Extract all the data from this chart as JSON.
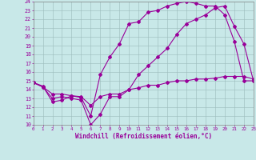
{
  "xlabel": "Windchill (Refroidissement éolien,°C)",
  "bg_color": "#c8e8e8",
  "line_color": "#990099",
  "xmin": 0,
  "xmax": 23,
  "ymin": 10,
  "ymax": 24,
  "line1_x": [
    0,
    1,
    2,
    3,
    4,
    5,
    6,
    7,
    8,
    9,
    10,
    11,
    12,
    13,
    14,
    15,
    16,
    17,
    18,
    19,
    20,
    21,
    22,
    23
  ],
  "line1_y": [
    14.8,
    14.4,
    12.6,
    12.8,
    13.3,
    13.1,
    11.0,
    15.7,
    17.7,
    19.2,
    21.5,
    21.7,
    22.8,
    23.0,
    23.5,
    23.8,
    24.0,
    23.8,
    23.5,
    23.5,
    22.5,
    19.5,
    15.0,
    15.0
  ],
  "line2_x": [
    0,
    1,
    2,
    3,
    4,
    5,
    6,
    7,
    8,
    9,
    10,
    11,
    12,
    13,
    14,
    15,
    16,
    17,
    18,
    19,
    20,
    21,
    22,
    23
  ],
  "line2_y": [
    14.8,
    14.3,
    13.0,
    13.2,
    13.0,
    12.8,
    10.0,
    11.2,
    13.2,
    13.2,
    14.0,
    15.7,
    16.7,
    17.7,
    18.7,
    20.3,
    21.5,
    22.0,
    22.5,
    23.3,
    23.5,
    21.2,
    19.2,
    15.0
  ],
  "line3_x": [
    0,
    1,
    2,
    3,
    4,
    5,
    6,
    7,
    8,
    9,
    10,
    11,
    12,
    13,
    14,
    15,
    16,
    17,
    18,
    19,
    20,
    21,
    22,
    23
  ],
  "line3_y": [
    14.8,
    14.3,
    13.5,
    13.5,
    13.3,
    13.2,
    12.2,
    13.2,
    13.5,
    13.5,
    14.0,
    14.2,
    14.5,
    14.5,
    14.8,
    15.0,
    15.0,
    15.2,
    15.2,
    15.3,
    15.5,
    15.5,
    15.5,
    15.2
  ]
}
